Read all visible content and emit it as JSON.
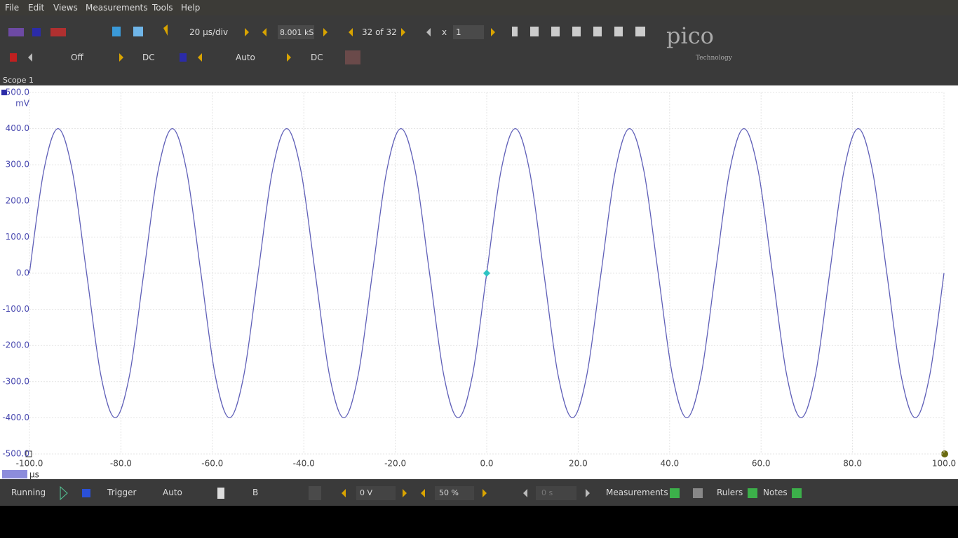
{
  "menu": [
    "File",
    "Edit",
    "Views",
    "Measurements",
    "Tools",
    "Help"
  ],
  "toolbar": {
    "timebase": "20 µs/div",
    "samples": "8.001 kS",
    "buffer": "32 of 32",
    "zoom_label": "x",
    "zoom_value": "1",
    "channel_a_range": "Off",
    "channel_a_coupling": "DC",
    "channel_b_range": "Auto",
    "channel_b_coupling": "DC"
  },
  "logo": {
    "name": "pico",
    "tagline": "Technology"
  },
  "tab": "Scope 1",
  "statusbar": {
    "run_state": "Running",
    "trigger_label": "Trigger",
    "trigger_mode": "Auto",
    "trigger_channel": "B",
    "threshold": "0 V",
    "pre_trigger": "50 %",
    "delay": "0 s",
    "measurements": "Measurements",
    "rulers": "Rulers",
    "notes": "Notes"
  },
  "chart_data": {
    "type": "line",
    "y_unit": "mV",
    "x_unit": "µs",
    "color": "#6060b8",
    "grid": true,
    "xlim": [
      -100,
      100
    ],
    "ylim": [
      -500,
      500
    ],
    "xticks": [
      {
        "value": -100,
        "label": "-100.0"
      },
      {
        "value": -80,
        "label": "-80.0"
      },
      {
        "value": -60,
        "label": "-60.0"
      },
      {
        "value": -40,
        "label": "-40.0"
      },
      {
        "value": -20,
        "label": "-20.0"
      },
      {
        "value": 0,
        "label": "0.0"
      },
      {
        "value": 20,
        "label": "20.0"
      },
      {
        "value": 40,
        "label": "40.0"
      },
      {
        "value": 60,
        "label": "60.0"
      },
      {
        "value": 80,
        "label": "80.0"
      },
      {
        "value": 100,
        "label": "100.0"
      }
    ],
    "yticks": [
      {
        "value": -500,
        "label": "-500.0"
      },
      {
        "value": -400,
        "label": "-400.0"
      },
      {
        "value": -300,
        "label": "-300.0"
      },
      {
        "value": -200,
        "label": "-200.0"
      },
      {
        "value": -100,
        "label": "-100.0"
      },
      {
        "value": 0,
        "label": "0.0"
      },
      {
        "value": 100,
        "label": "100.0"
      },
      {
        "value": 200,
        "label": "200.0"
      },
      {
        "value": 300,
        "label": "300.0"
      },
      {
        "value": 400,
        "label": "400.0"
      },
      {
        "value": 500,
        "label": "500.0"
      }
    ],
    "x": [
      -100,
      -96.875,
      -93.75,
      -90.625,
      -87.5,
      -84.375,
      -81.25,
      -78.125,
      -75,
      -71.875,
      -68.75,
      -65.625,
      -62.5,
      -59.375,
      -56.25,
      -53.125,
      -50,
      -46.875,
      -43.75,
      -40.625,
      -37.5,
      -34.375,
      -31.25,
      -28.125,
      -25,
      -21.875,
      -18.75,
      -15.625,
      -12.5,
      -9.375,
      -6.25,
      -3.125,
      0,
      3.125,
      6.25,
      9.375,
      12.5,
      15.625,
      18.75,
      21.875,
      25,
      28.125,
      31.25,
      34.375,
      37.5,
      40.625,
      43.75,
      46.875,
      50,
      53.125,
      56.25,
      59.375,
      62.5,
      65.625,
      68.75,
      71.875,
      75,
      78.125,
      81.25,
      84.375,
      87.5,
      90.625,
      93.75,
      96.875,
      100
    ],
    "values": [
      0,
      283,
      400,
      283,
      0,
      -283,
      -400,
      -283,
      0,
      283,
      400,
      283,
      0,
      -283,
      -400,
      -283,
      0,
      283,
      400,
      283,
      0,
      -283,
      -400,
      -283,
      0,
      283,
      400,
      283,
      0,
      -283,
      -400,
      -283,
      0,
      283,
      400,
      283,
      0,
      -283,
      -400,
      -283,
      0,
      283,
      400,
      283,
      0,
      -283,
      -400,
      -283,
      0,
      283,
      400,
      283,
      0,
      -283,
      -400,
      -283,
      0,
      283,
      400,
      283,
      0,
      -283,
      -400,
      -283,
      0
    ]
  }
}
